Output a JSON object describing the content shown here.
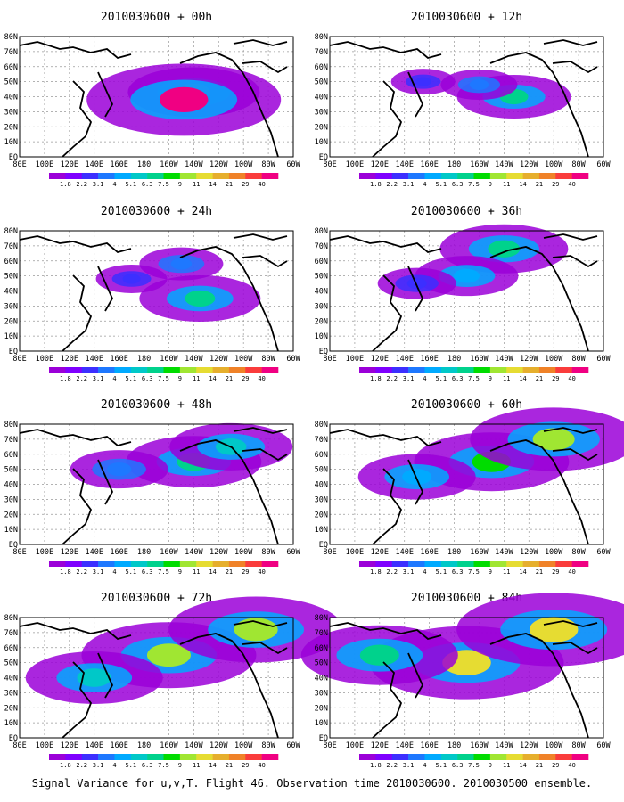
{
  "caption": "Signal Variance for u,v,T. Flight 46. Observation time 2010030600. 2010030500 ensemble.",
  "colorbar": {
    "labels": [
      "1.8",
      "2.2",
      "3.1",
      "4",
      "5.1",
      "6.3",
      "7.5",
      "9",
      "11",
      "14",
      "21",
      "29",
      "40"
    ],
    "colors": [
      "#9b00d8",
      "#7f00ff",
      "#3c2fff",
      "#1e78ff",
      "#00aaff",
      "#00c8c8",
      "#00d28c",
      "#00dc00",
      "#a0e632",
      "#e6dc32",
      "#e6af2d",
      "#f08228",
      "#fa3c3c",
      "#f00082"
    ]
  },
  "axes": {
    "x_ticks": [
      "80E",
      "100E",
      "120E",
      "140E",
      "160E",
      "180",
      "160W",
      "140W",
      "120W",
      "100W",
      "80W",
      "60W"
    ],
    "y_ticks": [
      "EQ",
      "10N",
      "20N",
      "30N",
      "40N",
      "50N",
      "60N",
      "70N",
      "80N"
    ]
  },
  "chart_data": [
    {
      "type": "heatmap",
      "title": "2010030600 + 00h",
      "x_range": [
        "80E",
        "60W"
      ],
      "y_range": [
        "EQ",
        "80N"
      ],
      "features": [
        {
          "lon": -140,
          "lat": 43,
          "level": 8
        },
        {
          "lon": -148,
          "lat": 38,
          "level": 13
        }
      ]
    },
    {
      "type": "heatmap",
      "title": "2010030600 + 12h",
      "x_range": [
        "80E",
        "60W"
      ],
      "y_range": [
        "EQ",
        "80N"
      ],
      "features": [
        {
          "lon": -132,
          "lat": 40,
          "level": 6
        },
        {
          "lon": -160,
          "lat": 48,
          "level": 3
        },
        {
          "lon": 155,
          "lat": 50,
          "level": 2
        }
      ]
    },
    {
      "type": "heatmap",
      "title": "2010030600 + 24h",
      "x_range": [
        "80E",
        "60W"
      ],
      "y_range": [
        "EQ",
        "80N"
      ],
      "features": [
        {
          "lon": -135,
          "lat": 35,
          "level": 6
        },
        {
          "lon": 170,
          "lat": 48,
          "level": 2
        },
        {
          "lon": -150,
          "lat": 58,
          "level": 3
        }
      ]
    },
    {
      "type": "heatmap",
      "title": "2010030600 + 36h",
      "x_range": [
        "80E",
        "60W"
      ],
      "y_range": [
        "EQ",
        "80N"
      ],
      "features": [
        {
          "lon": -140,
          "lat": 68,
          "level": 6
        },
        {
          "lon": -170,
          "lat": 50,
          "level": 4
        },
        {
          "lon": 150,
          "lat": 45,
          "level": 2
        }
      ]
    },
    {
      "type": "heatmap",
      "title": "2010030600 + 48h",
      "x_range": [
        "80E",
        "60W"
      ],
      "y_range": [
        "EQ",
        "80N"
      ],
      "features": [
        {
          "lon": -140,
          "lat": 55,
          "level": 6
        },
        {
          "lon": -110,
          "lat": 65,
          "level": 5
        },
        {
          "lon": 160,
          "lat": 50,
          "level": 3
        }
      ]
    },
    {
      "type": "heatmap",
      "title": "2010030600 + 60h",
      "x_range": [
        "80E",
        "60W"
      ],
      "y_range": [
        "EQ",
        "80N"
      ],
      "features": [
        {
          "lon": -150,
          "lat": 55,
          "level": 7
        },
        {
          "lon": -100,
          "lat": 70,
          "level": 8
        },
        {
          "lon": 150,
          "lat": 45,
          "level": 4
        }
      ]
    },
    {
      "type": "heatmap",
      "title": "2010030600 + 72h",
      "x_range": [
        "80E",
        "60W"
      ],
      "y_range": [
        "EQ",
        "80N"
      ],
      "features": [
        {
          "lon": -160,
          "lat": 55,
          "level": 8
        },
        {
          "lon": -90,
          "lat": 72,
          "level": 8
        },
        {
          "lon": 140,
          "lat": 40,
          "level": 5
        }
      ]
    },
    {
      "type": "heatmap",
      "title": "2010030600 + 84h",
      "x_range": [
        "80E",
        "60W"
      ],
      "y_range": [
        "EQ",
        "80N"
      ],
      "features": [
        {
          "lon": -170,
          "lat": 50,
          "level": 9
        },
        {
          "lon": -100,
          "lat": 72,
          "level": 9
        },
        {
          "lon": 120,
          "lat": 55,
          "level": 6
        }
      ]
    }
  ]
}
